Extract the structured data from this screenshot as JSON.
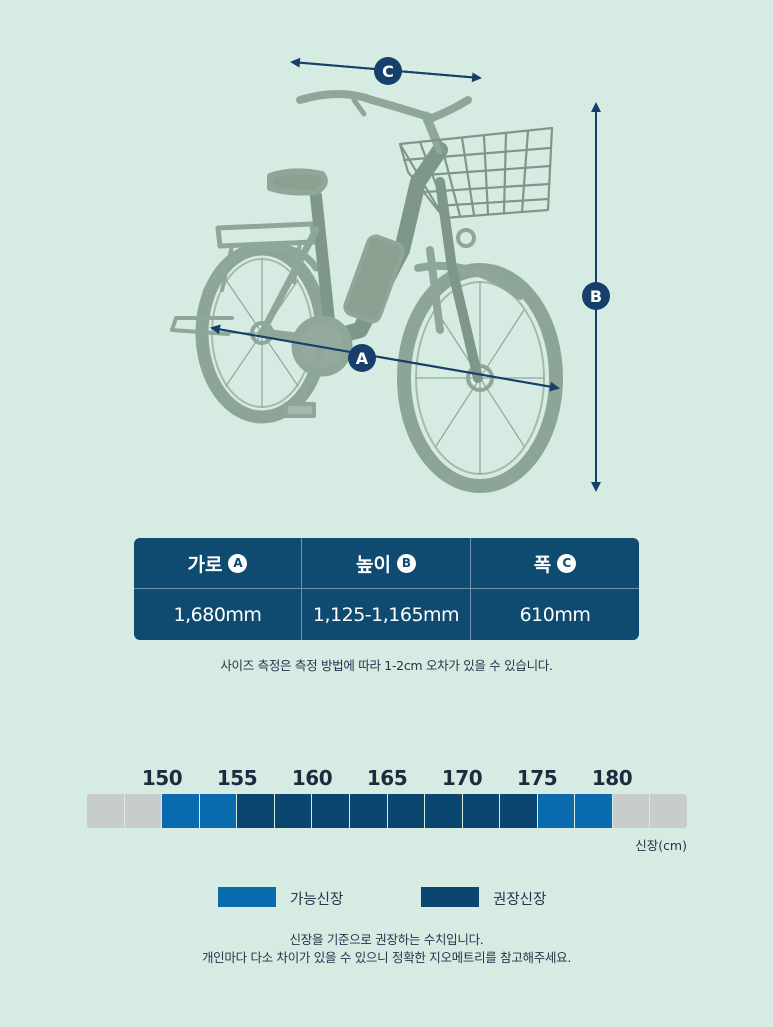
{
  "diagram": {
    "labels": [
      "A",
      "B",
      "C"
    ],
    "arrow_color": "#173f6b",
    "bike_color": "#8fa79a"
  },
  "spec_table": {
    "headers": [
      {
        "label": "가로",
        "badge": "A"
      },
      {
        "label": "높이",
        "badge": "B"
      },
      {
        "label": "폭",
        "badge": "C"
      }
    ],
    "values": [
      "1,680mm",
      "1,125-1,165mm",
      "610mm"
    ]
  },
  "measure_note": "사이즈 측정은 측정 방법에 따라 1-2cm 오차가 있을 수 있습니다.",
  "height_scale": {
    "tick_labels": [
      "150",
      "155",
      "160",
      "165",
      "170",
      "175",
      "180"
    ],
    "segments": [
      "grey",
      "grey",
      "possible",
      "possible",
      "recommended",
      "recommended",
      "recommended",
      "recommended",
      "recommended",
      "recommended",
      "recommended",
      "recommended",
      "possible",
      "possible",
      "grey",
      "grey"
    ],
    "unit_label": "신장(cm)",
    "colors": {
      "grey": "#c9cccc",
      "possible": "#0a6aae",
      "recommended": "#0b4670"
    }
  },
  "legend": {
    "possible_label": "가능신장",
    "recommended_label": "권장신장"
  },
  "footer_note": {
    "line1": "신장을 기준으로 권장하는 수치입니다.",
    "line2": "개인마다 다소 차이가 있을 수 있으니 정확한 지오메트리를 참고해주세요."
  }
}
